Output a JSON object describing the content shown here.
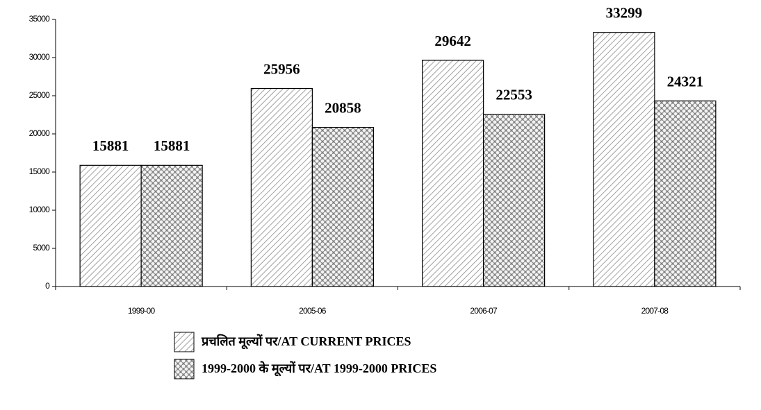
{
  "chart_data": {
    "type": "bar",
    "categories": [
      "1999-00",
      "2005-06",
      "2006-07",
      "2007-08"
    ],
    "series": [
      {
        "name": "प्रचलित मूल्यों पर/AT CURRENT PRICES",
        "color": "#8a8a8a",
        "pattern": "hatch",
        "values": [
          15881,
          25956,
          29642,
          33299
        ]
      },
      {
        "name": "1999-2000 के मूल्यों पर/AT 1999-2000 PRICES",
        "color": "#8a8a8a",
        "pattern": "dots",
        "values": [
          15881,
          20858,
          22553,
          24321
        ]
      }
    ],
    "ylim": [
      0,
      35000
    ],
    "yticks": [
      0,
      5000,
      10000,
      15000,
      20000,
      25000,
      30000,
      35000
    ],
    "grid": false,
    "legend": "bottom"
  }
}
